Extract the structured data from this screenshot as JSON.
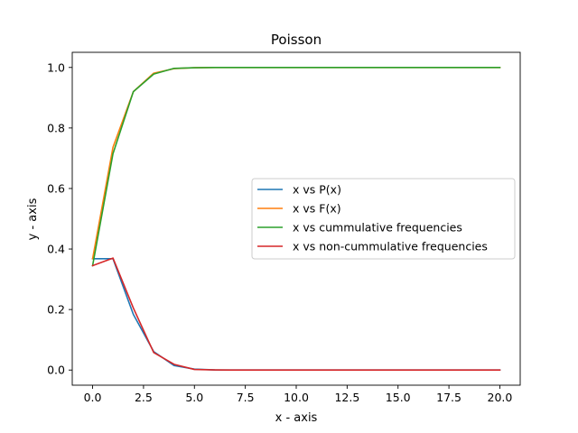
{
  "chart_data": {
    "type": "line",
    "title": "Poisson",
    "xlabel": "x - axis",
    "ylabel": "y - axis",
    "xlim": [
      -1.0,
      21.0
    ],
    "ylim": [
      -0.05,
      1.05
    ],
    "xticks": [
      0.0,
      2.5,
      5.0,
      7.5,
      10.0,
      12.5,
      15.0,
      17.5,
      20.0
    ],
    "xtick_labels": [
      "0.0",
      "2.5",
      "5.0",
      "7.5",
      "10.0",
      "12.5",
      "15.0",
      "17.5",
      "20.0"
    ],
    "yticks": [
      0.0,
      0.2,
      0.4,
      0.6,
      0.8,
      1.0
    ],
    "ytick_labels": [
      "0.0",
      "0.2",
      "0.4",
      "0.6",
      "0.8",
      "1.0"
    ],
    "grid": false,
    "legend_position": "center-right",
    "x": [
      0,
      1,
      2,
      3,
      4,
      5,
      6,
      7,
      8,
      9,
      10,
      11,
      12,
      13,
      14,
      15,
      16,
      17,
      18,
      19,
      20
    ],
    "series": [
      {
        "name": "x vs P(x)",
        "color": "#1f77b4",
        "values": [
          0.368,
          0.368,
          0.184,
          0.061,
          0.015,
          0.003,
          0.0005,
          0.0001,
          0,
          0,
          0,
          0,
          0,
          0,
          0,
          0,
          0,
          0,
          0,
          0,
          0
        ]
      },
      {
        "name": "x vs F(x)",
        "color": "#ff7f0e",
        "values": [
          0.368,
          0.736,
          0.92,
          0.981,
          0.996,
          0.999,
          1.0,
          1.0,
          1.0,
          1.0,
          1.0,
          1.0,
          1.0,
          1.0,
          1.0,
          1.0,
          1.0,
          1.0,
          1.0,
          1.0,
          1.0
        ]
      },
      {
        "name": "x vs cummulative frequencies",
        "color": "#2ca02c",
        "values": [
          0.345,
          0.715,
          0.92,
          0.978,
          0.997,
          0.999,
          1.0,
          1.0,
          1.0,
          1.0,
          1.0,
          1.0,
          1.0,
          1.0,
          1.0,
          1.0,
          1.0,
          1.0,
          1.0,
          1.0,
          1.0
        ]
      },
      {
        "name": "x vs non-cummulative frequencies",
        "color": "#d62728",
        "values": [
          0.345,
          0.37,
          0.205,
          0.058,
          0.019,
          0.002,
          0.0005,
          0,
          0,
          0,
          0,
          0,
          0,
          0,
          0,
          0,
          0,
          0,
          0,
          0,
          0
        ]
      }
    ]
  }
}
